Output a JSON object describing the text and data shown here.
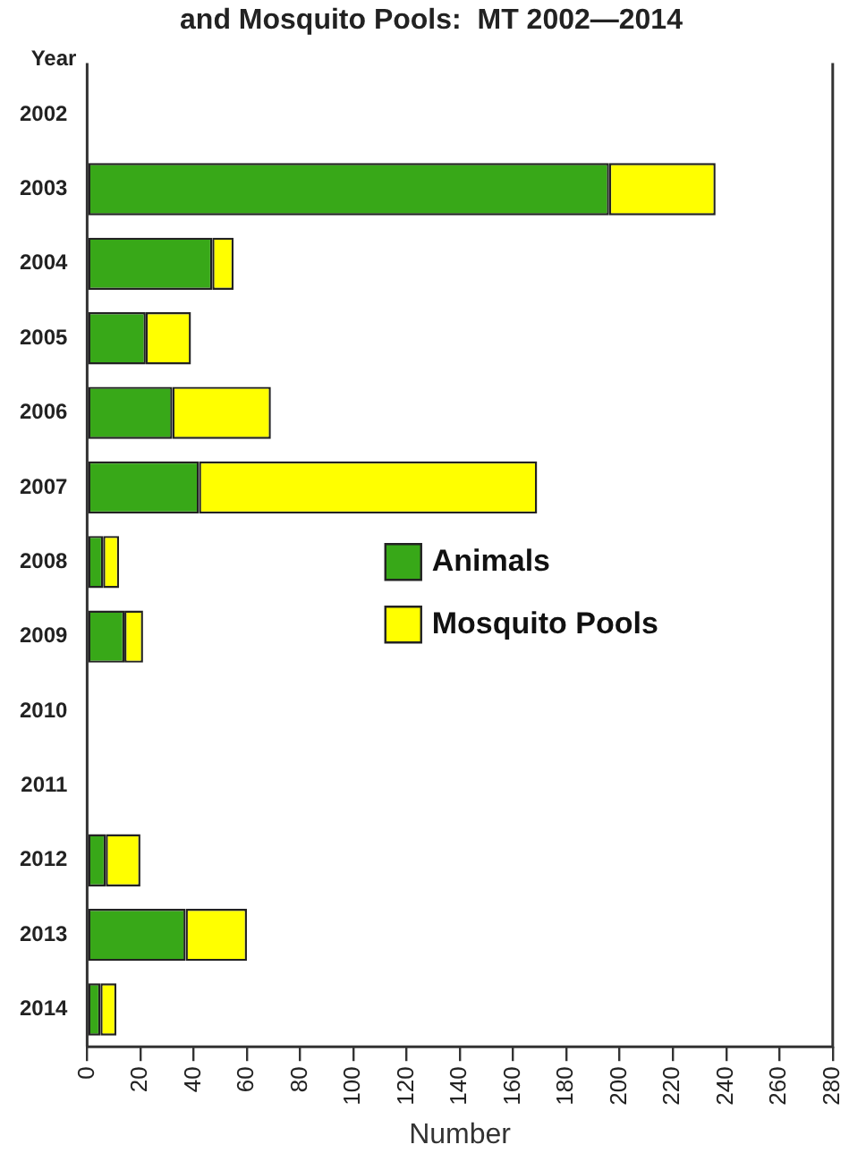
{
  "chart_data": {
    "type": "bar",
    "orientation": "horizontal",
    "stacked": true,
    "title": "and Mosquito Pools:  MT 2002—2014",
    "xlabel": "Number",
    "ylabel": "Year",
    "categories": [
      "2002",
      "2003",
      "2004",
      "2005",
      "2006",
      "2007",
      "2008",
      "2009",
      "2010",
      "2011",
      "2012",
      "2013",
      "2014"
    ],
    "series": [
      {
        "name": "Animals",
        "color": "#38a818",
        "values": [
          0,
          196,
          47,
          22,
          32,
          42,
          6,
          14,
          0,
          0,
          7,
          37,
          5
        ]
      },
      {
        "name": "Mosquito Pools",
        "color": "#ffff00",
        "values": [
          0,
          40,
          8,
          17,
          37,
          127,
          6,
          7,
          0,
          0,
          13,
          23,
          6
        ]
      }
    ],
    "xlim": [
      0,
      280
    ],
    "xticks": [
      0,
      20,
      40,
      60,
      80,
      100,
      120,
      140,
      160,
      180,
      200,
      220,
      240,
      260,
      280
    ],
    "grid": false,
    "legend": "right"
  }
}
